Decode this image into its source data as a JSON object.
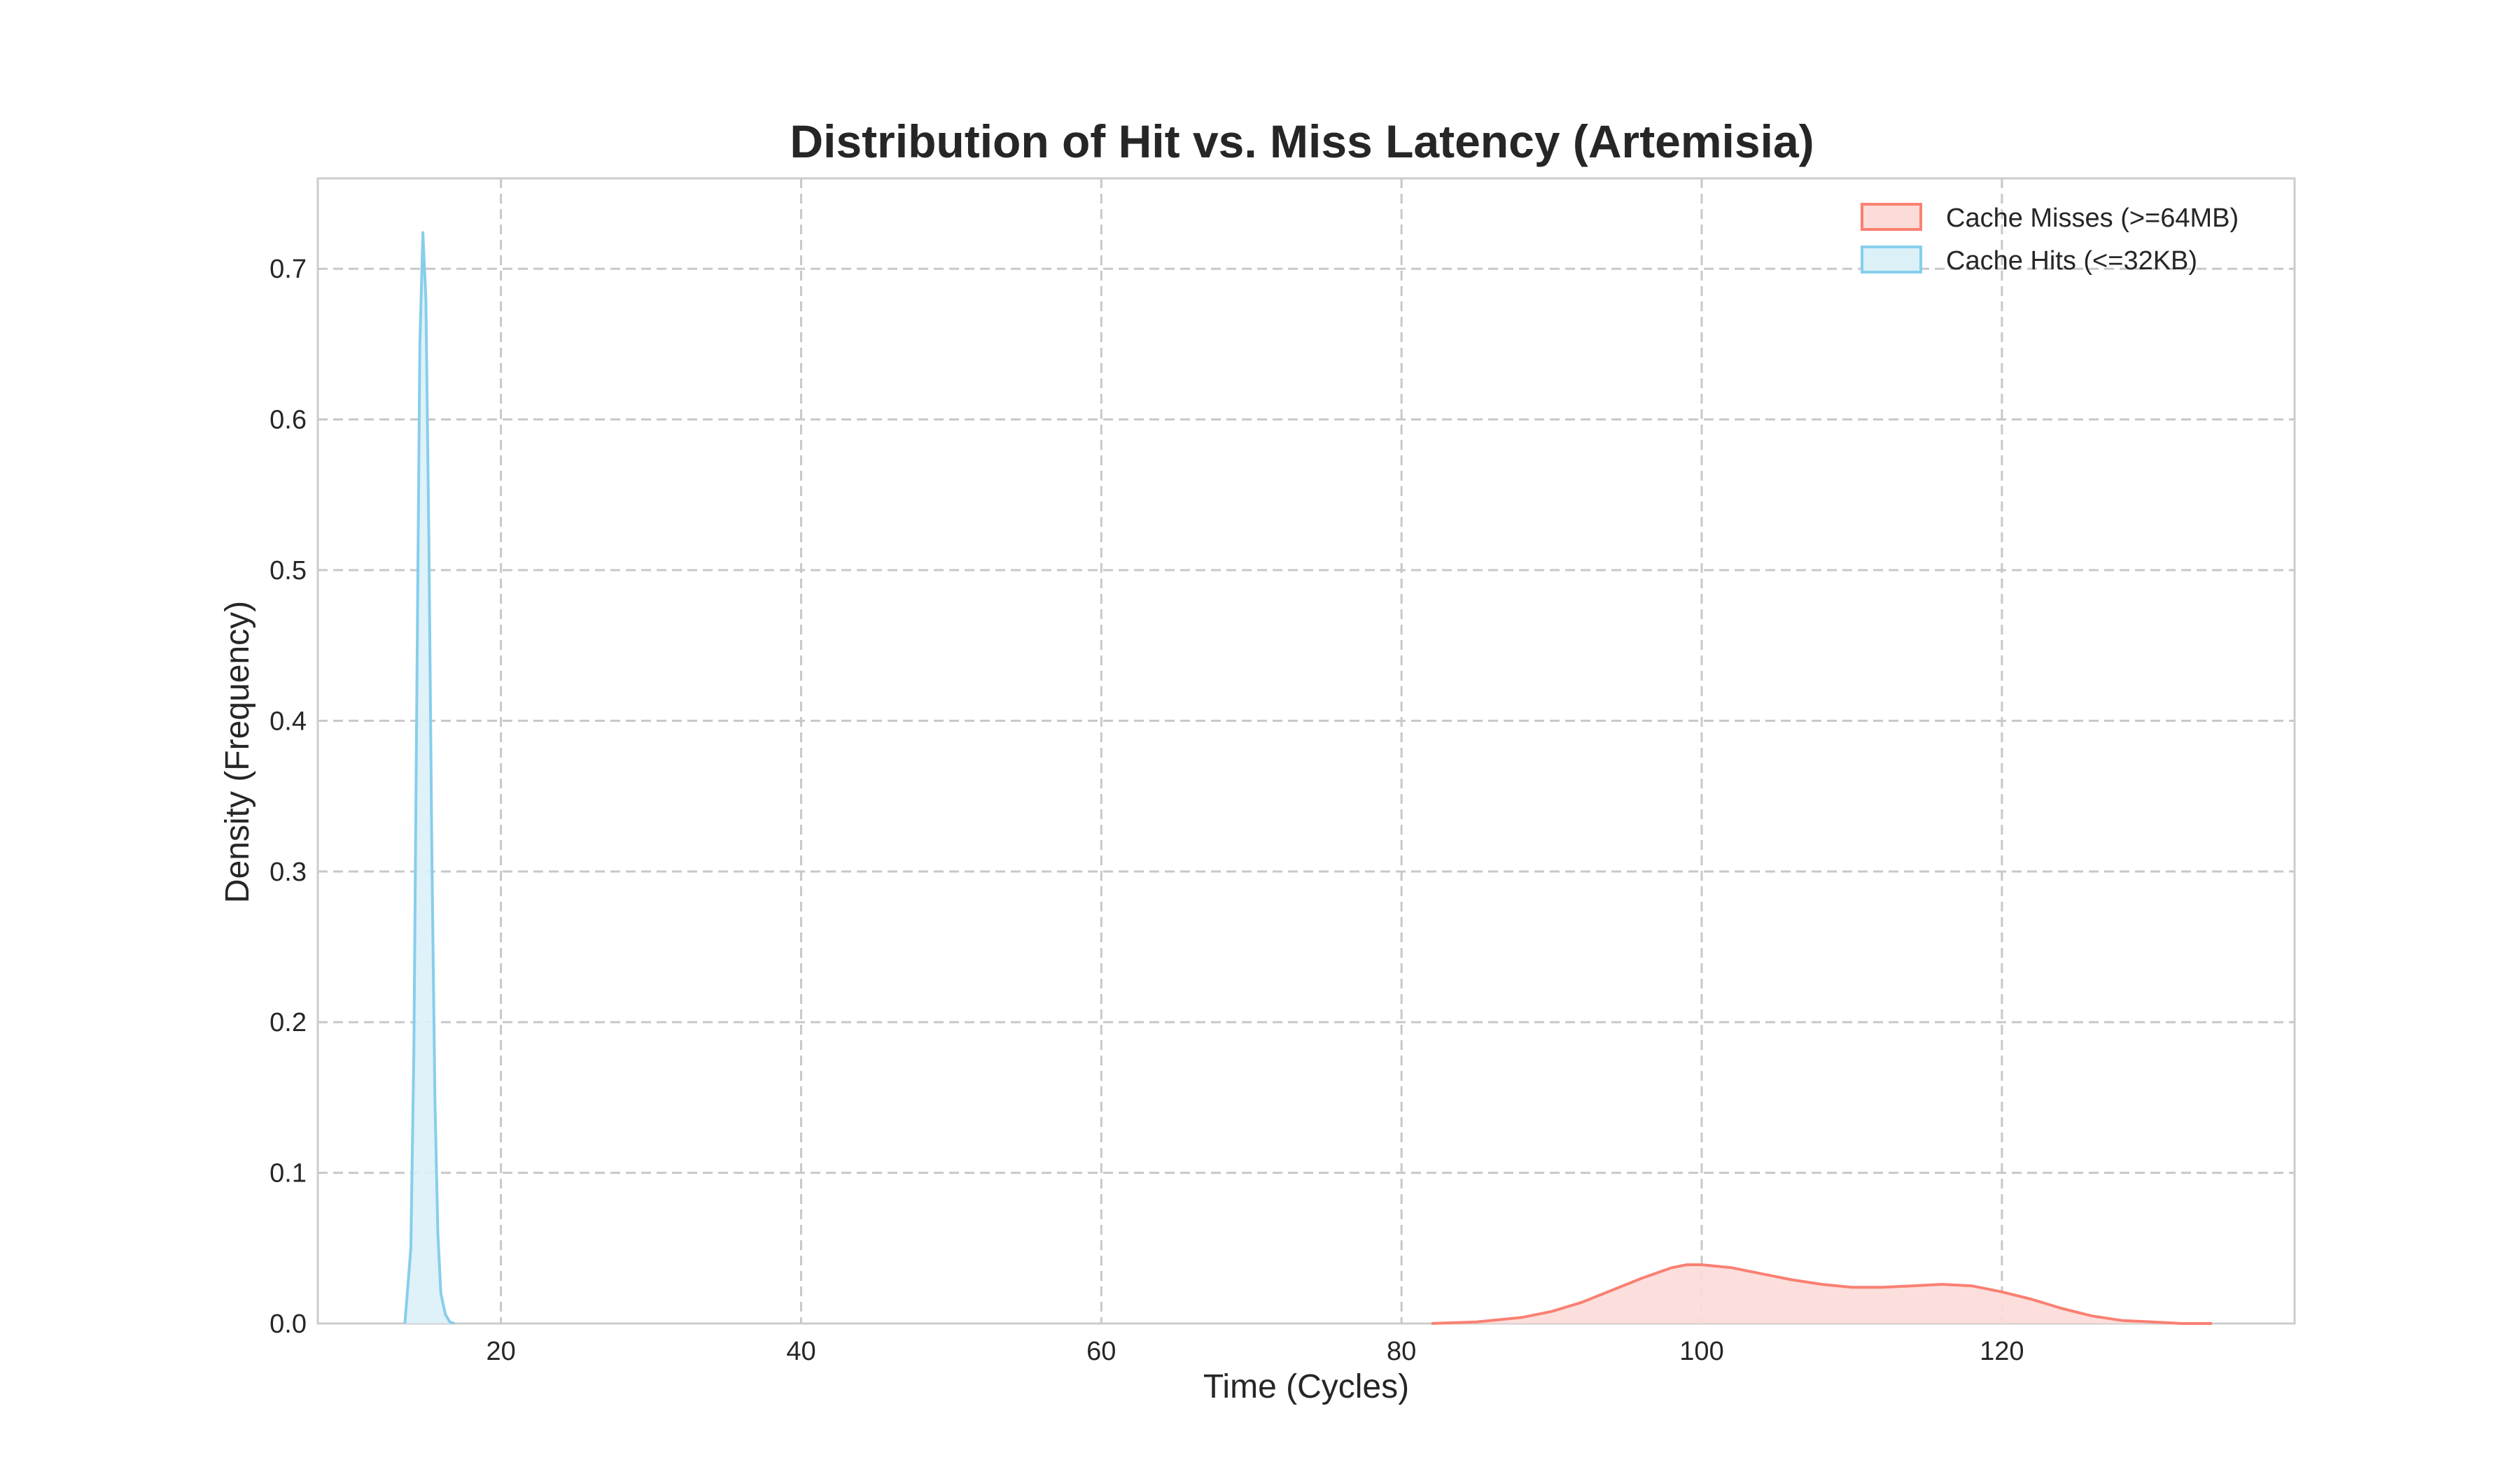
{
  "chart_data": {
    "type": "area",
    "title": "Distribution of Hit vs. Miss Latency (Artemisia)",
    "xlabel": "Time (Cycles)",
    "ylabel": "Density (Frequency)",
    "xlim": [
      7.8,
      139.5
    ],
    "ylim": [
      0,
      0.76
    ],
    "x_ticks": [
      20,
      40,
      60,
      80,
      100,
      120
    ],
    "y_ticks": [
      0.0,
      0.1,
      0.2,
      0.3,
      0.4,
      0.5,
      0.6,
      0.7
    ],
    "grid": true,
    "legend_position": "top-right",
    "series": [
      {
        "name": "Cache Misses (>=64MB)",
        "line_color": "#fa8072",
        "fill_color": "#fcdcd8",
        "x": [
          82,
          85,
          88,
          90,
          92,
          94,
          96,
          98,
          99,
          100,
          102,
          104,
          106,
          108,
          110,
          112,
          114,
          116,
          118,
          120,
          122,
          124,
          126,
          128,
          130,
          132,
          134
        ],
        "y": [
          0.0,
          0.001,
          0.004,
          0.008,
          0.014,
          0.022,
          0.03,
          0.037,
          0.039,
          0.039,
          0.037,
          0.033,
          0.029,
          0.026,
          0.024,
          0.024,
          0.025,
          0.026,
          0.025,
          0.021,
          0.016,
          0.01,
          0.005,
          0.002,
          0.001,
          0.0,
          0.0
        ]
      },
      {
        "name": "Cache Hits (<=32KB)",
        "line_color": "#87ceeb",
        "fill_color": "#dcf0f8",
        "x": [
          13.6,
          14.0,
          14.2,
          14.4,
          14.6,
          14.8,
          15.0,
          15.2,
          15.4,
          15.6,
          15.8,
          16.0,
          16.3,
          16.6,
          16.9
        ],
        "y": [
          0.0,
          0.05,
          0.18,
          0.42,
          0.65,
          0.724,
          0.68,
          0.52,
          0.31,
          0.15,
          0.06,
          0.02,
          0.006,
          0.001,
          0.0
        ]
      }
    ]
  }
}
